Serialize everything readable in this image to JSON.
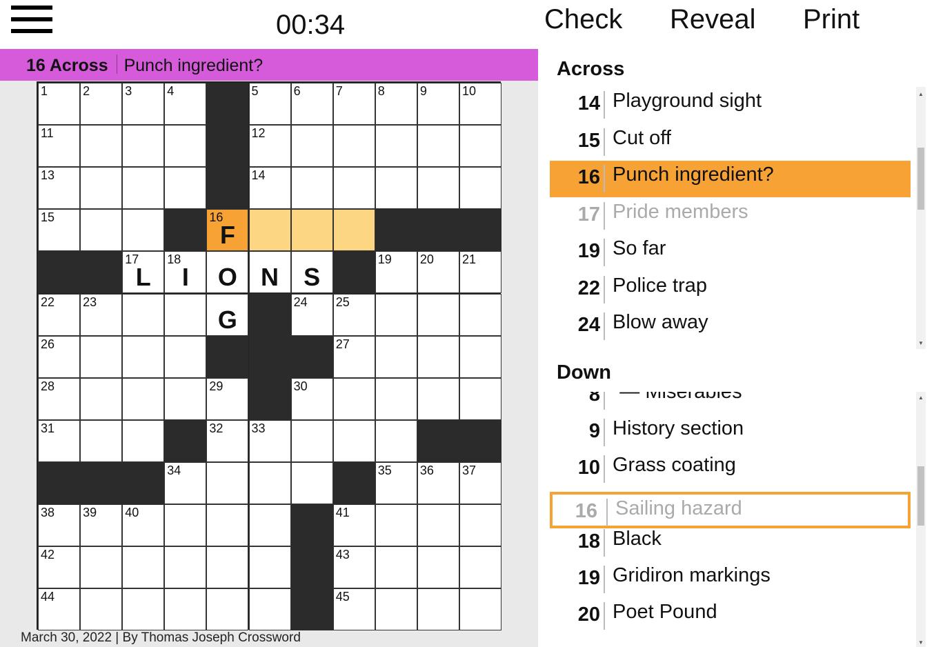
{
  "header": {
    "timer": "00:34",
    "check": "Check",
    "reveal": "Reveal",
    "print": "Print"
  },
  "current_clue": {
    "label": "16 Across",
    "text": "Punch ingredient?"
  },
  "colors": {
    "clue_bar": "#d65bdb",
    "active": "#f7a234",
    "highlight": "#fdd683"
  },
  "grid": {
    "rows": [
      "....#......",
      "....#......",
      "....#......",
      "...#F...###",
      "##LIONS#...",
      "....G#.....",
      "....###....",
      ".....#.....",
      "...#.....##",
      "###....#...",
      "......#....",
      "......#....",
      "......#...."
    ],
    "numbers": [
      [
        1,
        2,
        3,
        4,
        0,
        5,
        6,
        7,
        8,
        9,
        10
      ],
      [
        11,
        0,
        0,
        0,
        0,
        12,
        0,
        0,
        0,
        0,
        0
      ],
      [
        13,
        0,
        0,
        0,
        0,
        14,
        0,
        0,
        0,
        0,
        0
      ],
      [
        15,
        0,
        0,
        0,
        16,
        0,
        0,
        0,
        0,
        0,
        0
      ],
      [
        0,
        0,
        17,
        18,
        0,
        0,
        0,
        0,
        19,
        20,
        21
      ],
      [
        22,
        23,
        0,
        0,
        0,
        0,
        24,
        25,
        0,
        0,
        0
      ],
      [
        26,
        0,
        0,
        0,
        0,
        0,
        0,
        27,
        0,
        0,
        0
      ],
      [
        28,
        0,
        0,
        0,
        29,
        0,
        30,
        0,
        0,
        0,
        0
      ],
      [
        31,
        0,
        0,
        0,
        32,
        33,
        0,
        0,
        0,
        0,
        0
      ],
      [
        0,
        0,
        0,
        34,
        0,
        0,
        0,
        0,
        35,
        36,
        37
      ],
      [
        38,
        39,
        40,
        0,
        0,
        0,
        0,
        41,
        0,
        0,
        0
      ],
      [
        42,
        0,
        0,
        0,
        0,
        0,
        0,
        43,
        0,
        0,
        0
      ],
      [
        44,
        0,
        0,
        0,
        0,
        0,
        0,
        45,
        0,
        0,
        0
      ]
    ]
  },
  "footer": "March 30, 2022 | By Thomas Joseph Crossword",
  "across": {
    "title": "Across",
    "items": [
      {
        "num": "14",
        "text": "Playground sight"
      },
      {
        "num": "15",
        "text": "Cut off"
      },
      {
        "num": "16",
        "text": "Punch ingredient?",
        "state": "active"
      },
      {
        "num": "17",
        "text": "Pride members",
        "state": "dim"
      },
      {
        "num": "19",
        "text": "So far"
      },
      {
        "num": "22",
        "text": "Police trap"
      },
      {
        "num": "24",
        "text": "Blow away"
      }
    ]
  },
  "down": {
    "title": "Down",
    "items": [
      {
        "num": "8",
        "text": "\"— Miserables\""
      },
      {
        "num": "9",
        "text": "History section"
      },
      {
        "num": "10",
        "text": "Grass coating"
      },
      {
        "num": "16",
        "text": "Sailing hazard",
        "state": "cross"
      },
      {
        "num": "18",
        "text": "Black"
      },
      {
        "num": "19",
        "text": "Gridiron markings"
      },
      {
        "num": "20",
        "text": "Poet Pound"
      }
    ]
  }
}
